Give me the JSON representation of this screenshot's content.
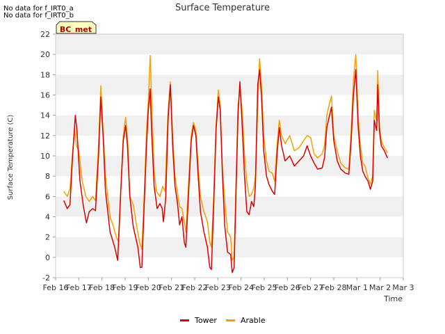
{
  "notes": [
    "No data for f_IRT0_a",
    "No data for f_IRT0_b"
  ],
  "badge": "BC_met",
  "chart_data": {
    "type": "line",
    "title": "Surface Temperature",
    "xlabel": "Time",
    "ylabel": "Surface Temperature (C)",
    "x_unit": "day offset from Feb 16",
    "xlim": [
      0,
      15
    ],
    "ylim": [
      -2,
      22
    ],
    "yticks": [
      -2,
      0,
      2,
      4,
      6,
      8,
      10,
      12,
      14,
      16,
      18,
      20,
      22
    ],
    "xtick_labels": [
      "Feb 16",
      "Feb 17",
      "Feb 18",
      "Feb 19",
      "Feb 20",
      "Feb 21",
      "Feb 22",
      "Feb 23",
      "Feb 24",
      "Feb 25",
      "Feb 26",
      "Feb 27",
      "Feb 28",
      "Mar 1",
      "Mar 2",
      "Mar 3"
    ],
    "grid": "horizontal bands",
    "legend_position": "bottom",
    "series": [
      {
        "name": "Tower",
        "color": "#dd0000",
        "points": [
          [
            0.35,
            5.6
          ],
          [
            0.5,
            4.8
          ],
          [
            0.62,
            5.2
          ],
          [
            0.72,
            9.5
          ],
          [
            0.85,
            14.0
          ],
          [
            0.92,
            12.5
          ],
          [
            1.05,
            7.5
          ],
          [
            1.2,
            5.0
          ],
          [
            1.33,
            3.4
          ],
          [
            1.45,
            4.5
          ],
          [
            1.6,
            4.8
          ],
          [
            1.72,
            4.6
          ],
          [
            1.85,
            10.0
          ],
          [
            1.95,
            15.8
          ],
          [
            2.05,
            12.0
          ],
          [
            2.15,
            6.5
          ],
          [
            2.35,
            2.5
          ],
          [
            2.55,
            1.0
          ],
          [
            2.68,
            -0.3
          ],
          [
            2.8,
            6.0
          ],
          [
            2.92,
            11.5
          ],
          [
            3.02,
            13.0
          ],
          [
            3.1,
            11.0
          ],
          [
            3.2,
            6.0
          ],
          [
            3.35,
            3.0
          ],
          [
            3.55,
            1.0
          ],
          [
            3.65,
            -1.0
          ],
          [
            3.72,
            -1.0
          ],
          [
            3.82,
            5.0
          ],
          [
            3.92,
            11.0
          ],
          [
            4.0,
            14.5
          ],
          [
            4.08,
            16.6
          ],
          [
            4.15,
            12.0
          ],
          [
            4.25,
            7.0
          ],
          [
            4.38,
            4.8
          ],
          [
            4.5,
            5.3
          ],
          [
            4.6,
            4.8
          ],
          [
            4.65,
            3.5
          ],
          [
            4.75,
            5.8
          ],
          [
            4.85,
            13.5
          ],
          [
            4.95,
            17.0
          ],
          [
            5.05,
            11.0
          ],
          [
            5.15,
            7.0
          ],
          [
            5.25,
            5.5
          ],
          [
            5.35,
            3.2
          ],
          [
            5.45,
            4.0
          ],
          [
            5.55,
            1.5
          ],
          [
            5.62,
            1.0
          ],
          [
            5.75,
            7.0
          ],
          [
            5.85,
            11.5
          ],
          [
            5.95,
            13.0
          ],
          [
            6.05,
            12.0
          ],
          [
            6.15,
            8.0
          ],
          [
            6.25,
            4.5
          ],
          [
            6.4,
            2.5
          ],
          [
            6.55,
            1.0
          ],
          [
            6.65,
            -1.0
          ],
          [
            6.72,
            -1.2
          ],
          [
            6.82,
            5.0
          ],
          [
            6.92,
            12.5
          ],
          [
            7.02,
            15.8
          ],
          [
            7.1,
            14.5
          ],
          [
            7.2,
            8.0
          ],
          [
            7.3,
            3.0
          ],
          [
            7.42,
            0.5
          ],
          [
            7.55,
            0.3
          ],
          [
            7.62,
            -1.5
          ],
          [
            7.7,
            -1.0
          ],
          [
            7.78,
            6.0
          ],
          [
            7.87,
            14.0
          ],
          [
            7.95,
            17.3
          ],
          [
            8.05,
            13.0
          ],
          [
            8.15,
            8.0
          ],
          [
            8.25,
            4.5
          ],
          [
            8.35,
            4.2
          ],
          [
            8.45,
            5.5
          ],
          [
            8.55,
            5.0
          ],
          [
            8.62,
            7.0
          ],
          [
            8.72,
            17.0
          ],
          [
            8.8,
            18.5
          ],
          [
            8.88,
            16.0
          ],
          [
            8.98,
            10.5
          ],
          [
            9.1,
            8.0
          ],
          [
            9.2,
            7.2
          ],
          [
            9.35,
            6.5
          ],
          [
            9.45,
            6.2
          ],
          [
            9.55,
            10.0
          ],
          [
            9.65,
            12.8
          ],
          [
            9.75,
            11.0
          ],
          [
            9.9,
            9.5
          ],
          [
            10.1,
            10.0
          ],
          [
            10.3,
            9.0
          ],
          [
            10.5,
            9.5
          ],
          [
            10.7,
            10.0
          ],
          [
            10.85,
            11.0
          ],
          [
            11.0,
            10.0
          ],
          [
            11.15,
            9.3
          ],
          [
            11.3,
            8.7
          ],
          [
            11.5,
            8.8
          ],
          [
            11.6,
            9.8
          ],
          [
            11.7,
            12.8
          ],
          [
            11.82,
            14.0
          ],
          [
            11.9,
            14.8
          ],
          [
            12.0,
            11.5
          ],
          [
            12.15,
            9.5
          ],
          [
            12.3,
            8.7
          ],
          [
            12.5,
            8.3
          ],
          [
            12.65,
            8.2
          ],
          [
            12.75,
            11.5
          ],
          [
            12.85,
            16.0
          ],
          [
            12.95,
            18.5
          ],
          [
            13.05,
            13.0
          ],
          [
            13.15,
            10.0
          ],
          [
            13.25,
            8.5
          ],
          [
            13.35,
            8.0
          ],
          [
            13.48,
            7.5
          ],
          [
            13.58,
            6.7
          ],
          [
            13.68,
            7.5
          ],
          [
            13.75,
            13.5
          ],
          [
            13.85,
            12.5
          ],
          [
            13.9,
            17.0
          ],
          [
            13.97,
            12.5
          ],
          [
            14.05,
            11.0
          ],
          [
            14.18,
            10.5
          ],
          [
            14.32,
            9.8
          ]
        ]
      },
      {
        "name": "Arable",
        "color": "#f5a000",
        "points": [
          [
            0.35,
            6.5
          ],
          [
            0.5,
            6.0
          ],
          [
            0.62,
            6.8
          ],
          [
            0.72,
            10.0
          ],
          [
            0.82,
            12.8
          ],
          [
            0.9,
            11.0
          ],
          [
            1.0,
            10.5
          ],
          [
            1.15,
            7.5
          ],
          [
            1.3,
            6.0
          ],
          [
            1.45,
            5.5
          ],
          [
            1.6,
            6.0
          ],
          [
            1.72,
            5.6
          ],
          [
            1.85,
            11.0
          ],
          [
            1.95,
            16.9
          ],
          [
            2.05,
            12.5
          ],
          [
            2.15,
            8.0
          ],
          [
            2.35,
            4.0
          ],
          [
            2.5,
            3.0
          ],
          [
            2.62,
            2.0
          ],
          [
            2.72,
            1.5
          ],
          [
            2.82,
            7.0
          ],
          [
            2.92,
            12.0
          ],
          [
            3.02,
            13.8
          ],
          [
            3.12,
            11.0
          ],
          [
            3.2,
            6.0
          ],
          [
            3.35,
            5.2
          ],
          [
            3.5,
            3.0
          ],
          [
            3.62,
            1.5
          ],
          [
            3.72,
            0.8
          ],
          [
            3.82,
            6.0
          ],
          [
            3.92,
            12.5
          ],
          [
            4.0,
            15.5
          ],
          [
            4.08,
            19.9
          ],
          [
            4.15,
            15.0
          ],
          [
            4.25,
            8.5
          ],
          [
            4.35,
            6.5
          ],
          [
            4.5,
            6.0
          ],
          [
            4.62,
            7.0
          ],
          [
            4.72,
            6.5
          ],
          [
            4.85,
            14.5
          ],
          [
            4.95,
            17.3
          ],
          [
            5.05,
            12.0
          ],
          [
            5.15,
            8.0
          ],
          [
            5.25,
            6.5
          ],
          [
            5.35,
            5.0
          ],
          [
            5.45,
            4.8
          ],
          [
            5.55,
            3.5
          ],
          [
            5.62,
            2.5
          ],
          [
            5.75,
            8.0
          ],
          [
            5.85,
            12.0
          ],
          [
            5.95,
            13.3
          ],
          [
            6.05,
            12.5
          ],
          [
            6.15,
            9.0
          ],
          [
            6.25,
            6.0
          ],
          [
            6.4,
            4.5
          ],
          [
            6.55,
            3.5
          ],
          [
            6.65,
            1.5
          ],
          [
            6.72,
            1.0
          ],
          [
            6.82,
            6.0
          ],
          [
            6.92,
            13.0
          ],
          [
            7.02,
            16.5
          ],
          [
            7.1,
            15.0
          ],
          [
            7.2,
            8.5
          ],
          [
            7.32,
            5.0
          ],
          [
            7.42,
            2.5
          ],
          [
            7.55,
            2.0
          ],
          [
            7.62,
            -0.3
          ],
          [
            7.7,
            0.0
          ],
          [
            7.78,
            7.0
          ],
          [
            7.87,
            15.0
          ],
          [
            7.95,
            16.5
          ],
          [
            8.05,
            14.5
          ],
          [
            8.15,
            10.0
          ],
          [
            8.25,
            7.5
          ],
          [
            8.35,
            6.0
          ],
          [
            8.45,
            6.2
          ],
          [
            8.55,
            6.8
          ],
          [
            8.62,
            8.0
          ],
          [
            8.72,
            15.0
          ],
          [
            8.8,
            19.6
          ],
          [
            8.88,
            17.0
          ],
          [
            8.98,
            12.0
          ],
          [
            9.1,
            9.5
          ],
          [
            9.2,
            8.5
          ],
          [
            9.35,
            8.3
          ],
          [
            9.45,
            7.5
          ],
          [
            9.55,
            11.0
          ],
          [
            9.65,
            13.5
          ],
          [
            9.75,
            12.0
          ],
          [
            9.9,
            11.2
          ],
          [
            10.1,
            12.0
          ],
          [
            10.3,
            10.5
          ],
          [
            10.5,
            10.8
          ],
          [
            10.7,
            11.5
          ],
          [
            10.85,
            12.0
          ],
          [
            11.0,
            11.8
          ],
          [
            11.15,
            10.2
          ],
          [
            11.3,
            9.8
          ],
          [
            11.5,
            10.2
          ],
          [
            11.6,
            11.0
          ],
          [
            11.7,
            14.0
          ],
          [
            11.82,
            15.2
          ],
          [
            11.9,
            15.9
          ],
          [
            12.0,
            12.0
          ],
          [
            12.15,
            10.5
          ],
          [
            12.3,
            9.3
          ],
          [
            12.5,
            8.8
          ],
          [
            12.65,
            8.7
          ],
          [
            12.75,
            12.5
          ],
          [
            12.85,
            17.5
          ],
          [
            12.95,
            20.0
          ],
          [
            13.05,
            14.0
          ],
          [
            13.15,
            11.0
          ],
          [
            13.25,
            9.3
          ],
          [
            13.35,
            9.0
          ],
          [
            13.48,
            7.8
          ],
          [
            13.58,
            7.2
          ],
          [
            13.68,
            8.0
          ],
          [
            13.75,
            14.5
          ],
          [
            13.85,
            13.5
          ],
          [
            13.9,
            18.4
          ],
          [
            13.97,
            13.0
          ],
          [
            14.05,
            11.5
          ],
          [
            14.18,
            10.8
          ],
          [
            14.32,
            10.3
          ]
        ]
      }
    ]
  }
}
